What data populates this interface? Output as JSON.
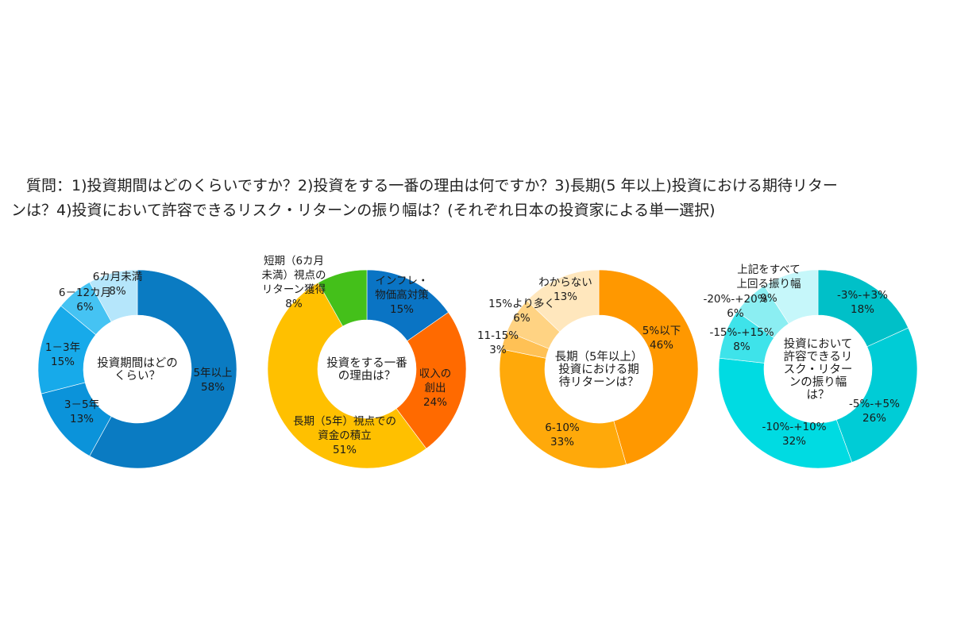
{
  "question": {
    "line1": "　質問：1)投資期間はどのくらいですか？2)投資をする一番の理由は何ですか？3)長期(5 年以上)投資における期待リター",
    "line2": "ンは？4)投資において許容できるリスク・リターンの振り幅は？(それぞれ日本の投資家による単一選択)"
  },
  "chart_data": [
    {
      "type": "pie",
      "donut": true,
      "center_label": [
        "投資期間はどの",
        "くらい？"
      ],
      "start": "top",
      "direction": "clockwise",
      "slices": [
        {
          "label": [
            "5年以上"
          ],
          "value": 58,
          "display": "58%",
          "color": "#0a7bc2"
        },
        {
          "label": [
            "3－5年"
          ],
          "value": 13,
          "display": "13%",
          "color": "#0b93da"
        },
        {
          "label": [
            "1－3年"
          ],
          "value": 15,
          "display": "15%",
          "color": "#17aaea"
        },
        {
          "label": [
            "6－12カ月"
          ],
          "value": 6,
          "display": "6%",
          "color": "#45c3f3"
        },
        {
          "label": [
            "6カ月未満"
          ],
          "value": 8,
          "display": "8%",
          "color": "#b5e6fb"
        }
      ]
    },
    {
      "type": "pie",
      "donut": true,
      "center_label": [
        "投資をする一番",
        "の理由は？"
      ],
      "start": "top",
      "direction": "clockwise",
      "slices": [
        {
          "label": [
            "インフレ・",
            "物価高対策"
          ],
          "value": 15,
          "display": "15%",
          "color": "#0a74c4"
        },
        {
          "label": [
            "収入の",
            "創出"
          ],
          "value": 24,
          "display": "24%",
          "color": "#ff6a00"
        },
        {
          "label": [
            "長期（5年）視点での",
            "資金の積立"
          ],
          "value": 51,
          "display": "51%",
          "color": "#ffc000"
        },
        {
          "label": [
            "短期（6カ月",
            "未満）視点の",
            "リターン獲得"
          ],
          "value": 8,
          "display": "8%",
          "color": "#44c01a"
        }
      ]
    },
    {
      "type": "pie",
      "donut": true,
      "center_label": [
        "長期（5年以上）",
        "投資における期",
        "待リターンは？"
      ],
      "start": "top",
      "direction": "clockwise",
      "slices": [
        {
          "label": [
            "5%以下"
          ],
          "value": 46,
          "display": "46%",
          "color": "#ff9800"
        },
        {
          "label": [
            "6-10%"
          ],
          "value": 33,
          "display": "33%",
          "color": "#ffa90a"
        },
        {
          "label": [
            "11-15%"
          ],
          "value": 3,
          "display": "3%",
          "color": "#ffc155"
        },
        {
          "label": [
            "15%より多く"
          ],
          "value": 6,
          "display": "6%",
          "color": "#ffd383"
        },
        {
          "label": [
            "わからない"
          ],
          "value": 13,
          "display": "13%",
          "color": "#ffe7bd"
        }
      ]
    },
    {
      "type": "pie",
      "donut": true,
      "center_label": [
        "投資において",
        "許容できるリ",
        "スク・リター",
        "ンの振り幅",
        "は？"
      ],
      "start": "top",
      "direction": "clockwise",
      "slices": [
        {
          "label": [
            "-3%-+3%"
          ],
          "value": 18,
          "display": "18%",
          "color": "#00c0c8"
        },
        {
          "label": [
            "-5%-+5%"
          ],
          "value": 26,
          "display": "26%",
          "color": "#00ccd6"
        },
        {
          "label": [
            "-10%-+10%"
          ],
          "value": 32,
          "display": "32%",
          "color": "#00dbe2"
        },
        {
          "label": [
            "-15%-+15%"
          ],
          "value": 8,
          "display": "8%",
          "color": "#3ee3ea"
        },
        {
          "label": [
            "-20%-+20%"
          ],
          "value": 6,
          "display": "6%",
          "color": "#8beef2"
        },
        {
          "label": [
            "上記をすべて",
            "上回る振り幅"
          ],
          "value": 9,
          "display": "9%",
          "color": "#c6f7fa"
        }
      ]
    }
  ]
}
